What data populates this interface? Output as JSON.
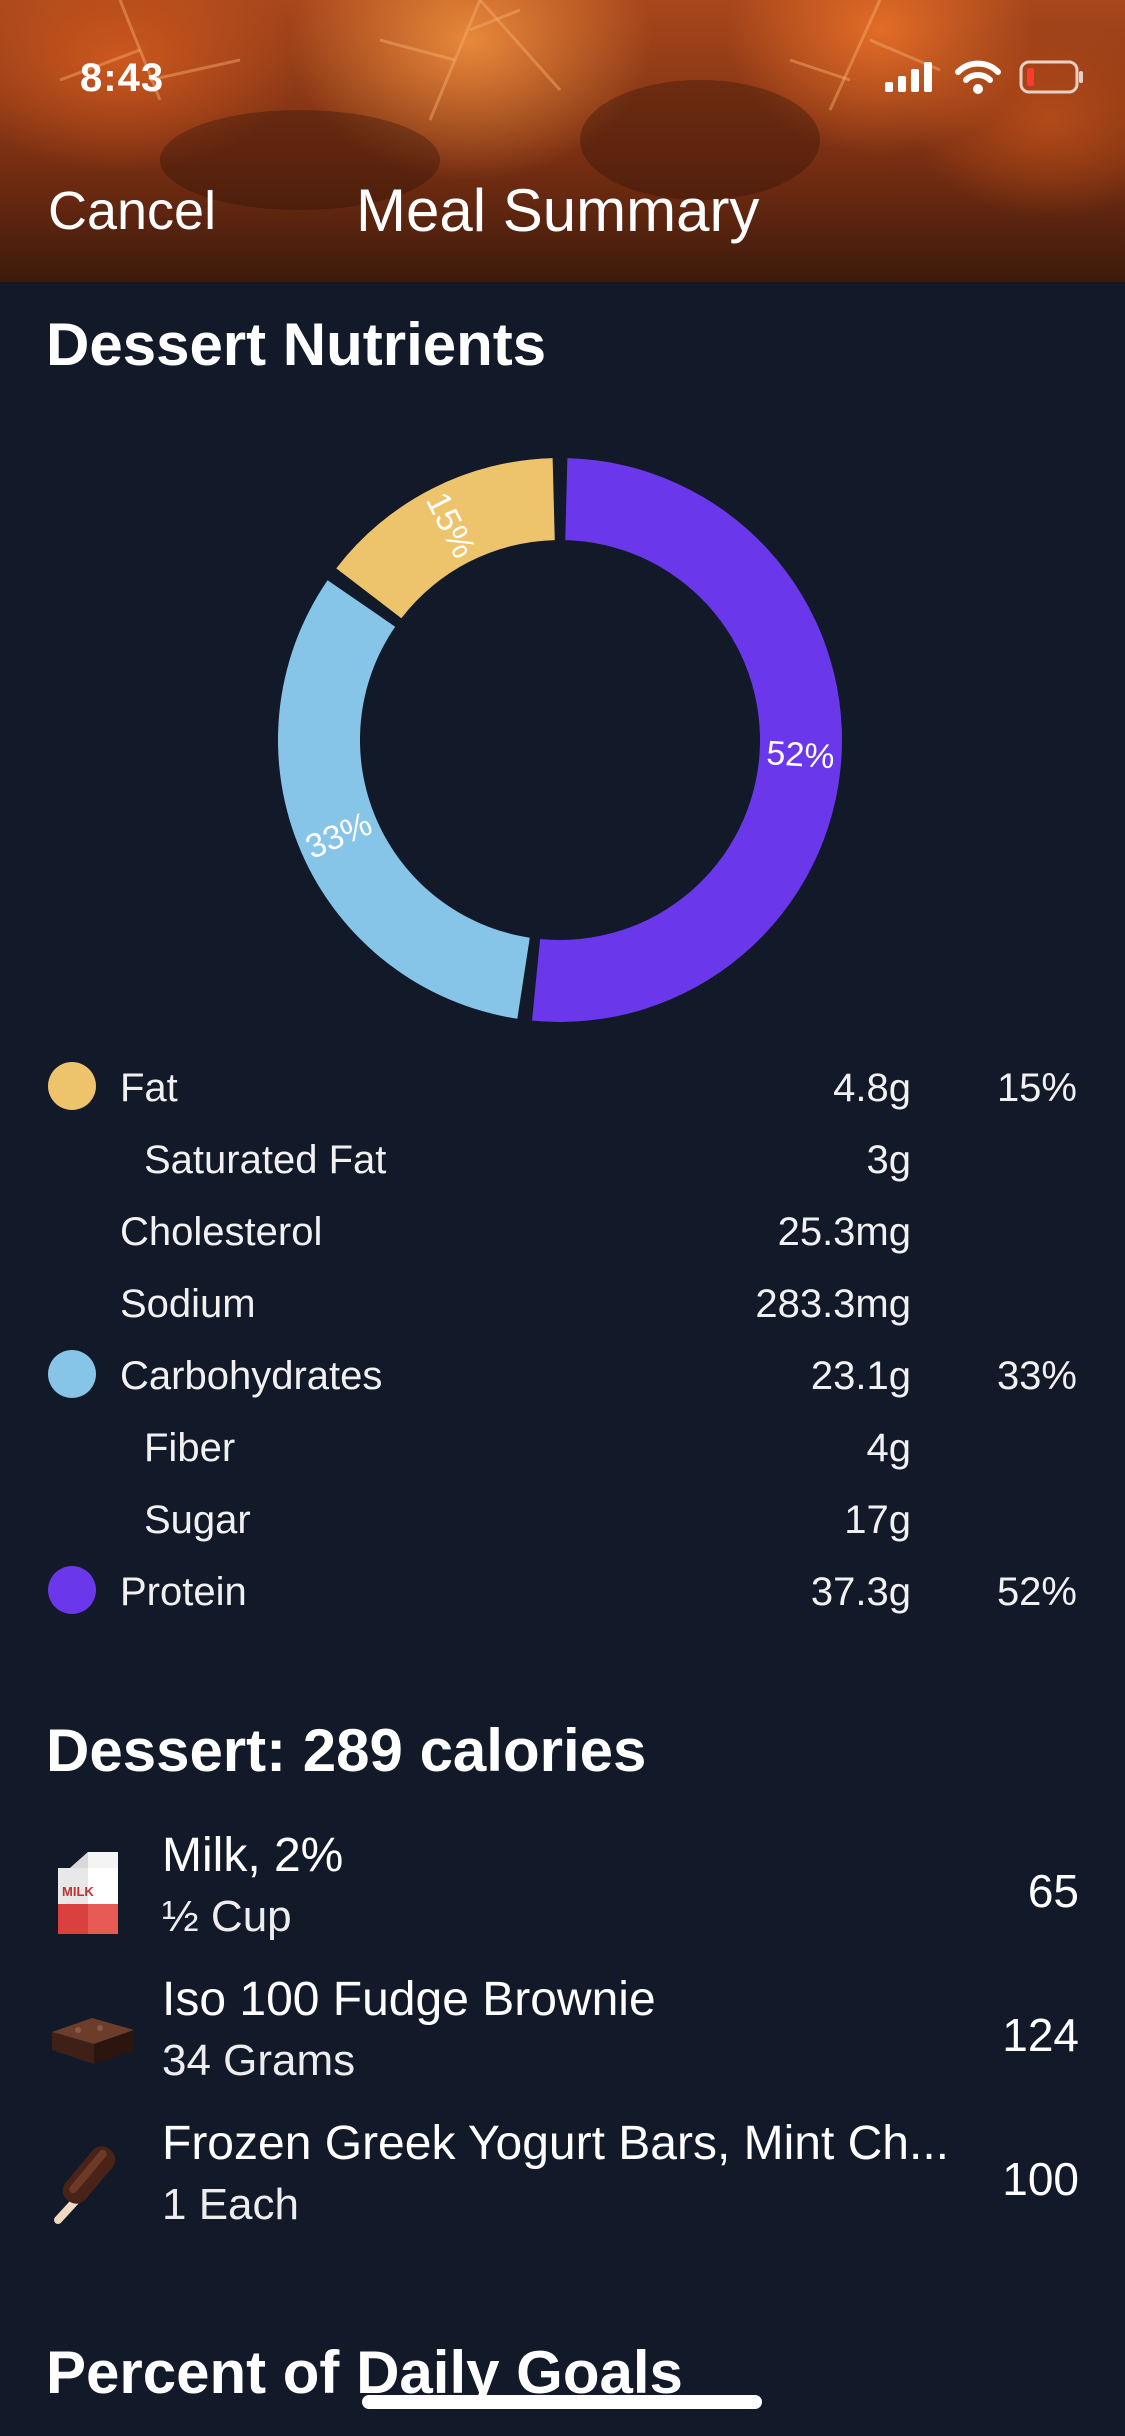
{
  "status_bar": {
    "time": "8:43"
  },
  "nav": {
    "cancel_label": "Cancel",
    "title": "Meal Summary"
  },
  "nutrients_section": {
    "title": "Dessert Nutrients"
  },
  "chart_data": {
    "type": "pie",
    "style": "donut",
    "slices": [
      {
        "label": "Fat",
        "value": 15,
        "display": "15%",
        "color": "#EDC46B"
      },
      {
        "label": "Carbohydrates",
        "value": 33,
        "display": "33%",
        "color": "#86C4E8"
      },
      {
        "label": "Protein",
        "value": 52,
        "display": "52%",
        "color": "#6A38EA"
      }
    ]
  },
  "nutrients": [
    {
      "name": "Fat",
      "amount": "4.8g",
      "pct": "15%",
      "color": "#EDC46B"
    },
    {
      "name": "Saturated Fat",
      "amount": "3g",
      "pct": ""
    },
    {
      "name": "Cholesterol",
      "amount": "25.3mg",
      "pct": ""
    },
    {
      "name": "Sodium",
      "amount": "283.3mg",
      "pct": ""
    },
    {
      "name": "Carbohydrates",
      "amount": "23.1g",
      "pct": "33%",
      "color": "#86C4E8"
    },
    {
      "name": "Fiber",
      "amount": "4g",
      "pct": ""
    },
    {
      "name": "Sugar",
      "amount": "17g",
      "pct": ""
    },
    {
      "name": "Protein",
      "amount": "37.3g",
      "pct": "52%",
      "color": "#6A38EA"
    }
  ],
  "dessert": {
    "title": "Dessert: 289 calories",
    "foods": [
      {
        "name": "Milk, 2%",
        "quantity": "½ Cup",
        "calories": "65",
        "icon": "milk-carton-icon"
      },
      {
        "name": "Iso 100 Fudge Brownie",
        "quantity": "34 Grams",
        "calories": "124",
        "icon": "brownie-icon"
      },
      {
        "name": "Frozen Greek Yogurt Bars, Mint Ch...",
        "quantity": "1 Each",
        "calories": "100",
        "icon": "ice-cream-bar-icon"
      }
    ]
  },
  "goals_section": {
    "title": "Percent of Daily Goals"
  },
  "icons": {
    "milk_label": "MILK"
  }
}
